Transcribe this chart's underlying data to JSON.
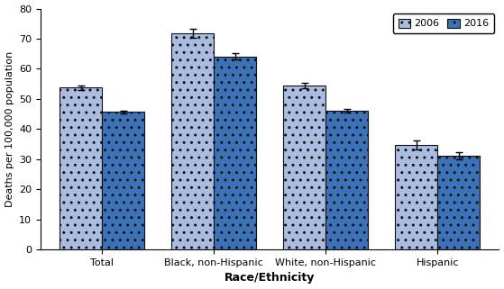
{
  "categories": [
    "Total",
    "Black, non-Hispanic",
    "White, non-Hispanic",
    "Hispanic"
  ],
  "values_2006": [
    53.8,
    71.7,
    54.6,
    34.8
  ],
  "values_2016": [
    45.7,
    64.1,
    46.2,
    31.0
  ],
  "errors_2006": [
    0.8,
    1.5,
    0.9,
    1.5
  ],
  "errors_2016": [
    0.5,
    1.1,
    0.6,
    1.2
  ],
  "color_2006": "#AABDE0",
  "color_2016": "#3B72B8",
  "ylabel": "Deaths per 100,000 population",
  "xlabel": "Race/Ethnicity",
  "ylim": [
    0,
    80
  ],
  "yticks": [
    0,
    10,
    20,
    30,
    40,
    50,
    60,
    70,
    80
  ],
  "legend_labels": [
    "2006",
    "2016"
  ],
  "bar_width": 0.38,
  "edgecolor": "#111111",
  "error_capsize": 3,
  "error_color": "black",
  "error_linewidth": 1.0,
  "figsize": [
    5.59,
    3.21
  ],
  "dpi": 100
}
